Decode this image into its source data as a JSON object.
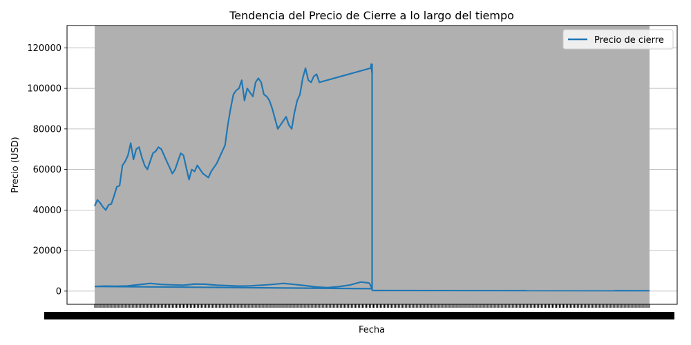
{
  "chart_data": {
    "type": "line",
    "title": "Tendencia del Precio de Cierre a lo largo del tiempo",
    "xlabel": "Fecha",
    "ylabel": "Precio (USD)",
    "ylim": [
      -6500,
      131000
    ],
    "yticks": [
      0,
      20000,
      40000,
      60000,
      80000,
      100000,
      120000
    ],
    "grid": "horizontal",
    "legend_position": "top-right",
    "colors": {
      "line": "#1f77b4",
      "shaded_band": "#b0b0b0",
      "grid": "#b0b0b0"
    },
    "x_tick_labels_note": "dense overlapping date labels",
    "series": [
      {
        "name": "Precio de cierre",
        "segments": [
          {
            "label": "upper",
            "x": [
              0.0,
              0.005,
              0.01,
              0.015,
              0.02,
              0.025,
              0.03,
              0.035,
              0.04,
              0.045,
              0.05,
              0.055,
              0.06,
              0.065,
              0.07,
              0.075,
              0.08,
              0.085,
              0.09,
              0.095,
              0.1,
              0.105,
              0.11,
              0.115,
              0.12,
              0.125,
              0.13,
              0.135,
              0.14,
              0.145,
              0.15,
              0.155,
              0.16,
              0.165,
              0.17,
              0.175,
              0.18,
              0.185,
              0.19,
              0.195,
              0.2,
              0.205,
              0.21,
              0.215,
              0.22,
              0.225,
              0.23,
              0.235,
              0.24,
              0.245,
              0.25,
              0.255,
              0.26,
              0.265,
              0.27,
              0.275,
              0.28,
              0.285,
              0.29,
              0.295,
              0.3,
              0.305,
              0.31,
              0.315,
              0.32,
              0.325,
              0.33,
              0.335,
              0.34,
              0.345,
              0.35,
              0.355,
              0.36,
              0.365,
              0.37,
              0.375,
              0.38,
              0.385,
              0.39,
              0.395,
              0.4,
              0.405,
              0.4975,
              0.4985,
              0.4995,
              0.5
            ],
            "y": [
              42000,
              45000,
              43500,
              41500,
              40000,
              42500,
              43000,
              47000,
              51500,
              52000,
              62000,
              64000,
              67000,
              73000,
              65000,
              70000,
              71000,
              66000,
              62000,
              60000,
              64000,
              68000,
              69000,
              71000,
              70000,
              67000,
              64000,
              61000,
              58000,
              60000,
              64000,
              68000,
              67000,
              61000,
              55000,
              60000,
              59000,
              62000,
              60000,
              58000,
              57000,
              56000,
              59000,
              61000,
              63000,
              66000,
              69000,
              72000,
              82000,
              90000,
              97000,
              99000,
              100000,
              104000,
              94000,
              100000,
              98000,
              96000,
              103000,
              105000,
              103000,
              97000,
              96000,
              94000,
              90000,
              85000,
              80000,
              82000,
              84000,
              86000,
              82000,
              80000,
              88000,
              94000,
              97000,
              105000,
              110000,
              104000,
              103000,
              106000,
              107000,
              103000,
              110000,
              112000,
              108000,
              112000
            ]
          },
          {
            "label": "drop",
            "x": [
              0.5,
              0.5
            ],
            "y": [
              112000,
              300
            ]
          },
          {
            "label": "tail",
            "x": [
              0.5,
              1.0
            ],
            "y": [
              300,
              200
            ]
          },
          {
            "label": "lower",
            "x": [
              0.0,
              0.02,
              0.04,
              0.06,
              0.08,
              0.1,
              0.12,
              0.14,
              0.16,
              0.18,
              0.2,
              0.22,
              0.24,
              0.26,
              0.28,
              0.3,
              0.32,
              0.34,
              0.36,
              0.38,
              0.4,
              0.42,
              0.44,
              0.46,
              0.48,
              0.495
            ],
            "y": [
              2300,
              2500,
              2400,
              2600,
              3200,
              3800,
              3300,
              3100,
              2900,
              3500,
              3400,
              2900,
              2700,
              2500,
              2600,
              2900,
              3300,
              3800,
              3300,
              2700,
              2000,
              1700,
              2200,
              3000,
              4500,
              4000
            ]
          },
          {
            "label": "connector",
            "x": [
              0.495,
              0.5,
              0.0
            ],
            "y": [
              4000,
              1200,
              2300
            ]
          }
        ]
      }
    ]
  }
}
